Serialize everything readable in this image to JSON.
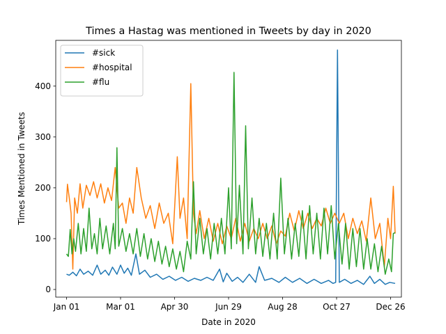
{
  "chart_data": {
    "type": "line",
    "title": "Times a Hastag was mentioned in Tweets by day in 2020",
    "xlabel": "Date in 2020",
    "ylabel": "Times Mentioned in Tweets",
    "xlim": [
      "2019-12-20",
      "2021-01-07"
    ],
    "ylim": [
      -15,
      490
    ],
    "x_ticks": [
      {
        "date": "2020-01-01",
        "label": "Jan 01"
      },
      {
        "date": "2020-03-01",
        "label": "Mar 01"
      },
      {
        "date": "2020-04-30",
        "label": "Apr 30"
      },
      {
        "date": "2020-06-29",
        "label": "Jun 29"
      },
      {
        "date": "2020-08-28",
        "label": "Aug 28"
      },
      {
        "date": "2020-10-27",
        "label": "Oct 27"
      },
      {
        "date": "2020-12-26",
        "label": "Dec 26"
      }
    ],
    "y_ticks": [
      0,
      100,
      200,
      300,
      400
    ],
    "grid": false,
    "legend_position": "top-left",
    "series": [
      {
        "name": "#sick",
        "color": "#1f77b4",
        "points": [
          [
            "2020-01-01",
            30
          ],
          [
            "2020-01-04",
            28
          ],
          [
            "2020-01-08",
            34
          ],
          [
            "2020-01-12",
            27
          ],
          [
            "2020-01-16",
            40
          ],
          [
            "2020-01-20",
            30
          ],
          [
            "2020-01-25",
            36
          ],
          [
            "2020-01-30",
            28
          ],
          [
            "2020-02-04",
            48
          ],
          [
            "2020-02-08",
            30
          ],
          [
            "2020-02-13",
            38
          ],
          [
            "2020-02-17",
            28
          ],
          [
            "2020-02-21",
            44
          ],
          [
            "2020-02-26",
            30
          ],
          [
            "2020-03-01",
            48
          ],
          [
            "2020-03-05",
            32
          ],
          [
            "2020-03-09",
            42
          ],
          [
            "2020-03-13",
            28
          ],
          [
            "2020-03-18",
            70
          ],
          [
            "2020-03-22",
            30
          ],
          [
            "2020-03-28",
            38
          ],
          [
            "2020-04-03",
            24
          ],
          [
            "2020-04-10",
            30
          ],
          [
            "2020-04-17",
            20
          ],
          [
            "2020-04-24",
            26
          ],
          [
            "2020-05-01",
            18
          ],
          [
            "2020-05-08",
            24
          ],
          [
            "2020-05-15",
            16
          ],
          [
            "2020-05-22",
            22
          ],
          [
            "2020-05-29",
            18
          ],
          [
            "2020-06-05",
            24
          ],
          [
            "2020-06-12",
            18
          ],
          [
            "2020-06-19",
            40
          ],
          [
            "2020-06-23",
            15
          ],
          [
            "2020-06-27",
            32
          ],
          [
            "2020-07-03",
            16
          ],
          [
            "2020-07-09",
            24
          ],
          [
            "2020-07-15",
            14
          ],
          [
            "2020-07-22",
            30
          ],
          [
            "2020-07-29",
            14
          ],
          [
            "2020-08-02",
            45
          ],
          [
            "2020-08-08",
            18
          ],
          [
            "2020-08-16",
            22
          ],
          [
            "2020-08-24",
            14
          ],
          [
            "2020-08-31",
            24
          ],
          [
            "2020-09-08",
            14
          ],
          [
            "2020-09-16",
            22
          ],
          [
            "2020-09-24",
            12
          ],
          [
            "2020-10-02",
            20
          ],
          [
            "2020-10-10",
            12
          ],
          [
            "2020-10-18",
            18
          ],
          [
            "2020-10-23",
            12
          ],
          [
            "2020-10-26",
            14
          ],
          [
            "2020-10-28",
            471
          ],
          [
            "2020-10-30",
            14
          ],
          [
            "2020-11-05",
            20
          ],
          [
            "2020-11-12",
            12
          ],
          [
            "2020-11-19",
            18
          ],
          [
            "2020-11-26",
            10
          ],
          [
            "2020-12-03",
            26
          ],
          [
            "2020-12-08",
            12
          ],
          [
            "2020-12-14",
            20
          ],
          [
            "2020-12-20",
            10
          ],
          [
            "2020-12-25",
            14
          ],
          [
            "2020-12-31",
            12
          ]
        ]
      },
      {
        "name": "#hospital",
        "color": "#ff7f0e",
        "points": [
          [
            "2020-01-01",
            172
          ],
          [
            "2020-01-02",
            207
          ],
          [
            "2020-01-04",
            180
          ],
          [
            "2020-01-06",
            150
          ],
          [
            "2020-01-08",
            40
          ],
          [
            "2020-01-10",
            180
          ],
          [
            "2020-01-13",
            150
          ],
          [
            "2020-01-16",
            208
          ],
          [
            "2020-01-19",
            160
          ],
          [
            "2020-01-23",
            205
          ],
          [
            "2020-01-27",
            185
          ],
          [
            "2020-01-31",
            212
          ],
          [
            "2020-02-04",
            180
          ],
          [
            "2020-02-08",
            208
          ],
          [
            "2020-02-12",
            170
          ],
          [
            "2020-02-16",
            200
          ],
          [
            "2020-02-20",
            175
          ],
          [
            "2020-02-24",
            240
          ],
          [
            "2020-02-28",
            160
          ],
          [
            "2020-03-03",
            170
          ],
          [
            "2020-03-07",
            130
          ],
          [
            "2020-03-11",
            180
          ],
          [
            "2020-03-15",
            150
          ],
          [
            "2020-03-19",
            240
          ],
          [
            "2020-03-24",
            180
          ],
          [
            "2020-03-29",
            140
          ],
          [
            "2020-04-03",
            165
          ],
          [
            "2020-04-08",
            120
          ],
          [
            "2020-04-13",
            170
          ],
          [
            "2020-04-18",
            130
          ],
          [
            "2020-04-23",
            150
          ],
          [
            "2020-04-28",
            90
          ],
          [
            "2020-05-03",
            261
          ],
          [
            "2020-05-06",
            140
          ],
          [
            "2020-05-10",
            180
          ],
          [
            "2020-05-14",
            100
          ],
          [
            "2020-05-18",
            405
          ],
          [
            "2020-05-21",
            150
          ],
          [
            "2020-05-24",
            110
          ],
          [
            "2020-05-28",
            155
          ],
          [
            "2020-06-02",
            100
          ],
          [
            "2020-06-07",
            140
          ],
          [
            "2020-06-12",
            95
          ],
          [
            "2020-06-17",
            130
          ],
          [
            "2020-06-22",
            90
          ],
          [
            "2020-06-27",
            125
          ],
          [
            "2020-07-02",
            100
          ],
          [
            "2020-07-07",
            140
          ],
          [
            "2020-07-12",
            95
          ],
          [
            "2020-07-17",
            130
          ],
          [
            "2020-07-22",
            95
          ],
          [
            "2020-07-27",
            120
          ],
          [
            "2020-08-01",
            100
          ],
          [
            "2020-08-06",
            130
          ],
          [
            "2020-08-11",
            100
          ],
          [
            "2020-08-16",
            125
          ],
          [
            "2020-08-21",
            90
          ],
          [
            "2020-08-26",
            115
          ],
          [
            "2020-08-31",
            105
          ],
          [
            "2020-09-05",
            150
          ],
          [
            "2020-09-10",
            115
          ],
          [
            "2020-09-15",
            155
          ],
          [
            "2020-09-20",
            120
          ],
          [
            "2020-09-25",
            150
          ],
          [
            "2020-09-30",
            120
          ],
          [
            "2020-10-05",
            140
          ],
          [
            "2020-10-10",
            125
          ],
          [
            "2020-10-15",
            160
          ],
          [
            "2020-10-20",
            130
          ],
          [
            "2020-10-25",
            150
          ],
          [
            "2020-10-30",
            130
          ],
          [
            "2020-11-04",
            150
          ],
          [
            "2020-11-09",
            100
          ],
          [
            "2020-11-14",
            140
          ],
          [
            "2020-11-19",
            110
          ],
          [
            "2020-11-24",
            135
          ],
          [
            "2020-11-29",
            95
          ],
          [
            "2020-12-04",
            180
          ],
          [
            "2020-12-09",
            100
          ],
          [
            "2020-12-14",
            130
          ],
          [
            "2020-12-19",
            45
          ],
          [
            "2020-12-23",
            140
          ],
          [
            "2020-12-26",
            100
          ],
          [
            "2020-12-29",
            203
          ],
          [
            "2020-12-31",
            110
          ]
        ]
      },
      {
        "name": "#flu",
        "color": "#2ca02c",
        "points": [
          [
            "2020-01-01",
            70
          ],
          [
            "2020-01-03",
            65
          ],
          [
            "2020-01-05",
            118
          ],
          [
            "2020-01-07",
            70
          ],
          [
            "2020-01-09",
            100
          ],
          [
            "2020-01-11",
            75
          ],
          [
            "2020-01-14",
            130
          ],
          [
            "2020-01-17",
            70
          ],
          [
            "2020-01-20",
            120
          ],
          [
            "2020-01-23",
            75
          ],
          [
            "2020-01-26",
            160
          ],
          [
            "2020-01-29",
            80
          ],
          [
            "2020-02-01",
            110
          ],
          [
            "2020-02-04",
            70
          ],
          [
            "2020-02-07",
            140
          ],
          [
            "2020-02-10",
            80
          ],
          [
            "2020-02-14",
            125
          ],
          [
            "2020-02-18",
            70
          ],
          [
            "2020-02-22",
            130
          ],
          [
            "2020-02-24",
            80
          ],
          [
            "2020-02-26",
            279
          ],
          [
            "2020-02-28",
            85
          ],
          [
            "2020-03-03",
            120
          ],
          [
            "2020-03-07",
            75
          ],
          [
            "2020-03-11",
            110
          ],
          [
            "2020-03-15",
            70
          ],
          [
            "2020-03-19",
            120
          ],
          [
            "2020-03-23",
            65
          ],
          [
            "2020-03-27",
            110
          ],
          [
            "2020-03-31",
            60
          ],
          [
            "2020-04-04",
            100
          ],
          [
            "2020-04-08",
            55
          ],
          [
            "2020-04-12",
            95
          ],
          [
            "2020-04-16",
            50
          ],
          [
            "2020-04-20",
            85
          ],
          [
            "2020-04-24",
            45
          ],
          [
            "2020-04-28",
            80
          ],
          [
            "2020-05-02",
            40
          ],
          [
            "2020-05-06",
            75
          ],
          [
            "2020-05-10",
            35
          ],
          [
            "2020-05-14",
            95
          ],
          [
            "2020-05-18",
            60
          ],
          [
            "2020-05-21",
            212
          ],
          [
            "2020-05-24",
            70
          ],
          [
            "2020-05-28",
            140
          ],
          [
            "2020-06-01",
            70
          ],
          [
            "2020-06-05",
            120
          ],
          [
            "2020-06-09",
            60
          ],
          [
            "2020-06-13",
            130
          ],
          [
            "2020-06-17",
            70
          ],
          [
            "2020-06-21",
            140
          ],
          [
            "2020-06-25",
            70
          ],
          [
            "2020-06-29",
            200
          ],
          [
            "2020-07-02",
            80
          ],
          [
            "2020-07-05",
            427
          ],
          [
            "2020-07-08",
            90
          ],
          [
            "2020-07-11",
            205
          ],
          [
            "2020-07-15",
            70
          ],
          [
            "2020-07-18",
            322
          ],
          [
            "2020-07-21",
            80
          ],
          [
            "2020-07-25",
            180
          ],
          [
            "2020-07-29",
            70
          ],
          [
            "2020-08-02",
            140
          ],
          [
            "2020-08-06",
            65
          ],
          [
            "2020-08-10",
            130
          ],
          [
            "2020-08-14",
            60
          ],
          [
            "2020-08-18",
            150
          ],
          [
            "2020-08-22",
            60
          ],
          [
            "2020-08-26",
            219
          ],
          [
            "2020-08-30",
            70
          ],
          [
            "2020-09-03",
            140
          ],
          [
            "2020-09-07",
            60
          ],
          [
            "2020-09-11",
            130
          ],
          [
            "2020-09-15",
            65
          ],
          [
            "2020-09-19",
            155
          ],
          [
            "2020-09-23",
            60
          ],
          [
            "2020-09-27",
            165
          ],
          [
            "2020-10-01",
            70
          ],
          [
            "2020-10-05",
            150
          ],
          [
            "2020-10-09",
            60
          ],
          [
            "2020-10-13",
            160
          ],
          [
            "2020-10-17",
            70
          ],
          [
            "2020-10-21",
            165
          ],
          [
            "2020-10-25",
            60
          ],
          [
            "2020-10-29",
            130
          ],
          [
            "2020-11-02",
            50
          ],
          [
            "2020-11-06",
            130
          ],
          [
            "2020-11-10",
            40
          ],
          [
            "2020-11-14",
            120
          ],
          [
            "2020-11-18",
            45
          ],
          [
            "2020-11-22",
            120
          ],
          [
            "2020-11-26",
            40
          ],
          [
            "2020-11-30",
            100
          ],
          [
            "2020-12-04",
            40
          ],
          [
            "2020-12-08",
            90
          ],
          [
            "2020-12-12",
            35
          ],
          [
            "2020-12-16",
            85
          ],
          [
            "2020-12-20",
            30
          ],
          [
            "2020-12-24",
            60
          ],
          [
            "2020-12-27",
            35
          ],
          [
            "2020-12-29",
            110
          ],
          [
            "2020-12-31",
            112
          ]
        ]
      }
    ]
  }
}
